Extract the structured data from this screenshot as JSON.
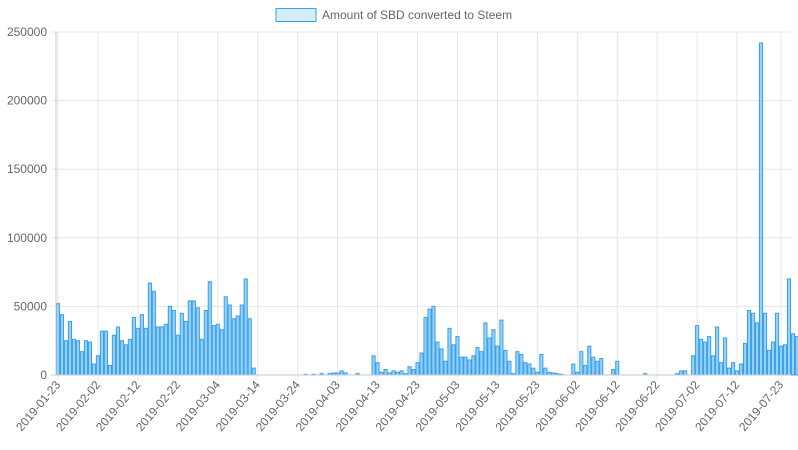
{
  "chart_data": {
    "type": "bar",
    "title": "",
    "xlabel": "",
    "ylabel": "",
    "legend": {
      "position": "top-center",
      "series_name": "Amount of SBD converted to Steem"
    },
    "ylim": [
      0,
      250000
    ],
    "y_ticks": [
      "0",
      "50000",
      "100000",
      "150000",
      "200000",
      "250000"
    ],
    "x_start": "2019-01-23",
    "x_end": "2019-07-25",
    "x_tick_labels": [
      "2019-01-23",
      "2019-02-02",
      "2019-02-12",
      "2019-02-22",
      "2019-03-04",
      "2019-03-14",
      "2019-03-24",
      "2019-04-03",
      "2019-04-13",
      "2019-04-23",
      "2019-05-03",
      "2019-05-13",
      "2019-05-23",
      "2019-06-02",
      "2019-06-12",
      "2019-06-22",
      "2019-07-02",
      "2019-07-12",
      "2019-07-23"
    ],
    "grid": true,
    "colors": {
      "bar_fill": "#9ad0f5",
      "bar_border": "#36a2eb",
      "grid": "#e6e6e6",
      "axis": "#c8c8c8",
      "text": "#666666"
    },
    "series": [
      {
        "name": "Amount of SBD converted to Steem",
        "points": [
          {
            "date": "2019-01-23",
            "value": 52000
          },
          {
            "date": "2019-01-24",
            "value": 44000
          },
          {
            "date": "2019-01-25",
            "value": 25000
          },
          {
            "date": "2019-01-26",
            "value": 39000
          },
          {
            "date": "2019-01-27",
            "value": 26000
          },
          {
            "date": "2019-01-28",
            "value": 25000
          },
          {
            "date": "2019-01-29",
            "value": 17000
          },
          {
            "date": "2019-01-30",
            "value": 25000
          },
          {
            "date": "2019-01-31",
            "value": 24000
          },
          {
            "date": "2019-02-01",
            "value": 8000
          },
          {
            "date": "2019-02-02",
            "value": 14000
          },
          {
            "date": "2019-02-03",
            "value": 32000
          },
          {
            "date": "2019-02-04",
            "value": 32000
          },
          {
            "date": "2019-02-05",
            "value": 7000
          },
          {
            "date": "2019-02-06",
            "value": 29000
          },
          {
            "date": "2019-02-07",
            "value": 35000
          },
          {
            "date": "2019-02-08",
            "value": 25000
          },
          {
            "date": "2019-02-09",
            "value": 22000
          },
          {
            "date": "2019-02-10",
            "value": 26000
          },
          {
            "date": "2019-02-11",
            "value": 42000
          },
          {
            "date": "2019-02-12",
            "value": 34000
          },
          {
            "date": "2019-02-13",
            "value": 44000
          },
          {
            "date": "2019-02-14",
            "value": 34000
          },
          {
            "date": "2019-02-15",
            "value": 67000
          },
          {
            "date": "2019-02-16",
            "value": 61000
          },
          {
            "date": "2019-02-17",
            "value": 35000
          },
          {
            "date": "2019-02-18",
            "value": 35000
          },
          {
            "date": "2019-02-19",
            "value": 37000
          },
          {
            "date": "2019-02-20",
            "value": 50000
          },
          {
            "date": "2019-02-21",
            "value": 47000
          },
          {
            "date": "2019-02-22",
            "value": 29000
          },
          {
            "date": "2019-02-23",
            "value": 45000
          },
          {
            "date": "2019-02-24",
            "value": 39000
          },
          {
            "date": "2019-02-25",
            "value": 54000
          },
          {
            "date": "2019-02-26",
            "value": 54000
          },
          {
            "date": "2019-02-27",
            "value": 49000
          },
          {
            "date": "2019-02-28",
            "value": 26000
          },
          {
            "date": "2019-03-01",
            "value": 47000
          },
          {
            "date": "2019-03-02",
            "value": 68000
          },
          {
            "date": "2019-03-03",
            "value": 36000
          },
          {
            "date": "2019-03-04",
            "value": 37000
          },
          {
            "date": "2019-03-05",
            "value": 33000
          },
          {
            "date": "2019-03-06",
            "value": 57000
          },
          {
            "date": "2019-03-07",
            "value": 51000
          },
          {
            "date": "2019-03-08",
            "value": 41000
          },
          {
            "date": "2019-03-09",
            "value": 43000
          },
          {
            "date": "2019-03-10",
            "value": 51000
          },
          {
            "date": "2019-03-11",
            "value": 70000
          },
          {
            "date": "2019-03-12",
            "value": 41000
          },
          {
            "date": "2019-03-13",
            "value": 5000
          },
          {
            "date": "2019-03-26",
            "value": 500
          },
          {
            "date": "2019-03-28",
            "value": 500
          },
          {
            "date": "2019-03-30",
            "value": 1000
          },
          {
            "date": "2019-04-01",
            "value": 1000
          },
          {
            "date": "2019-04-02",
            "value": 1500
          },
          {
            "date": "2019-04-03",
            "value": 1500
          },
          {
            "date": "2019-04-04",
            "value": 3000
          },
          {
            "date": "2019-04-05",
            "value": 1500
          },
          {
            "date": "2019-04-08",
            "value": 1000
          },
          {
            "date": "2019-04-12",
            "value": 14000
          },
          {
            "date": "2019-04-13",
            "value": 9000
          },
          {
            "date": "2019-04-14",
            "value": 2000
          },
          {
            "date": "2019-04-15",
            "value": 4000
          },
          {
            "date": "2019-04-16",
            "value": 1500
          },
          {
            "date": "2019-04-17",
            "value": 3000
          },
          {
            "date": "2019-04-18",
            "value": 2000
          },
          {
            "date": "2019-04-19",
            "value": 3000
          },
          {
            "date": "2019-04-20",
            "value": 1000
          },
          {
            "date": "2019-04-21",
            "value": 6000
          },
          {
            "date": "2019-04-22",
            "value": 4000
          },
          {
            "date": "2019-04-23",
            "value": 9000
          },
          {
            "date": "2019-04-24",
            "value": 16000
          },
          {
            "date": "2019-04-25",
            "value": 42000
          },
          {
            "date": "2019-04-26",
            "value": 48000
          },
          {
            "date": "2019-04-27",
            "value": 50000
          },
          {
            "date": "2019-04-28",
            "value": 24000
          },
          {
            "date": "2019-04-29",
            "value": 19000
          },
          {
            "date": "2019-04-30",
            "value": 10000
          },
          {
            "date": "2019-05-01",
            "value": 34000
          },
          {
            "date": "2019-05-02",
            "value": 22000
          },
          {
            "date": "2019-05-03",
            "value": 28000
          },
          {
            "date": "2019-05-04",
            "value": 13000
          },
          {
            "date": "2019-05-05",
            "value": 13000
          },
          {
            "date": "2019-05-06",
            "value": 11000
          },
          {
            "date": "2019-05-07",
            "value": 14000
          },
          {
            "date": "2019-05-08",
            "value": 20000
          },
          {
            "date": "2019-05-09",
            "value": 17000
          },
          {
            "date": "2019-05-10",
            "value": 38000
          },
          {
            "date": "2019-05-11",
            "value": 27000
          },
          {
            "date": "2019-05-12",
            "value": 33000
          },
          {
            "date": "2019-05-13",
            "value": 21000
          },
          {
            "date": "2019-05-14",
            "value": 40000
          },
          {
            "date": "2019-05-15",
            "value": 18000
          },
          {
            "date": "2019-05-16",
            "value": 10000
          },
          {
            "date": "2019-05-17",
            "value": 1000
          },
          {
            "date": "2019-05-18",
            "value": 17000
          },
          {
            "date": "2019-05-19",
            "value": 15000
          },
          {
            "date": "2019-05-20",
            "value": 9000
          },
          {
            "date": "2019-05-21",
            "value": 8000
          },
          {
            "date": "2019-05-22",
            "value": 5000
          },
          {
            "date": "2019-05-23",
            "value": 2000
          },
          {
            "date": "2019-05-24",
            "value": 15000
          },
          {
            "date": "2019-05-25",
            "value": 5000
          },
          {
            "date": "2019-05-26",
            "value": 2000
          },
          {
            "date": "2019-05-27",
            "value": 1500
          },
          {
            "date": "2019-05-28",
            "value": 1000
          },
          {
            "date": "2019-05-29",
            "value": 500
          },
          {
            "date": "2019-06-01",
            "value": 8000
          },
          {
            "date": "2019-06-02",
            "value": 2000
          },
          {
            "date": "2019-06-03",
            "value": 17000
          },
          {
            "date": "2019-06-04",
            "value": 7000
          },
          {
            "date": "2019-06-05",
            "value": 21000
          },
          {
            "date": "2019-06-06",
            "value": 13000
          },
          {
            "date": "2019-06-07",
            "value": 10000
          },
          {
            "date": "2019-06-08",
            "value": 12000
          },
          {
            "date": "2019-06-11",
            "value": 4000
          },
          {
            "date": "2019-06-12",
            "value": 10000
          },
          {
            "date": "2019-06-19",
            "value": 1000
          },
          {
            "date": "2019-06-27",
            "value": 1000
          },
          {
            "date": "2019-06-28",
            "value": 3000
          },
          {
            "date": "2019-06-29",
            "value": 3000
          },
          {
            "date": "2019-07-01",
            "value": 14000
          },
          {
            "date": "2019-07-02",
            "value": 36000
          },
          {
            "date": "2019-07-03",
            "value": 26000
          },
          {
            "date": "2019-07-04",
            "value": 24000
          },
          {
            "date": "2019-07-05",
            "value": 28000
          },
          {
            "date": "2019-07-06",
            "value": 14000
          },
          {
            "date": "2019-07-07",
            "value": 35000
          },
          {
            "date": "2019-07-08",
            "value": 9000
          },
          {
            "date": "2019-07-09",
            "value": 27000
          },
          {
            "date": "2019-07-10",
            "value": 5000
          },
          {
            "date": "2019-07-11",
            "value": 9000
          },
          {
            "date": "2019-07-12",
            "value": 3000
          },
          {
            "date": "2019-07-13",
            "value": 8000
          },
          {
            "date": "2019-07-14",
            "value": 23000
          },
          {
            "date": "2019-07-15",
            "value": 47000
          },
          {
            "date": "2019-07-16",
            "value": 45000
          },
          {
            "date": "2019-07-17",
            "value": 38000
          },
          {
            "date": "2019-07-18",
            "value": 242000
          },
          {
            "date": "2019-07-19",
            "value": 45000
          },
          {
            "date": "2019-07-20",
            "value": 18000
          },
          {
            "date": "2019-07-21",
            "value": 24000
          },
          {
            "date": "2019-07-22",
            "value": 45000
          },
          {
            "date": "2019-07-23",
            "value": 21000
          },
          {
            "date": "2019-07-24",
            "value": 22000
          },
          {
            "date": "2019-07-25",
            "value": 70000
          },
          {
            "date": "2019-07-26",
            "value": 30000
          },
          {
            "date": "2019-07-27",
            "value": 28000
          }
        ]
      }
    ]
  }
}
